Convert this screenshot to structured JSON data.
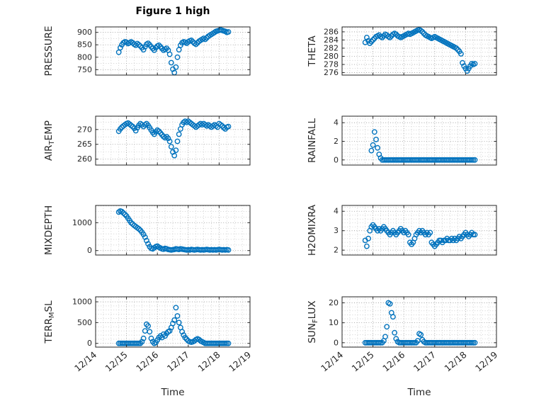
{
  "chart_data": {
    "type": "scatter",
    "title": "Figure 1 high",
    "xlabel": "Time",
    "marker_color": "#0072BD",
    "axes_color": "#262626",
    "grid_major_color": "#999999",
    "grid_minor_color": "#c2c2c2",
    "legend": "none",
    "grid": "on",
    "xlim": [
      0,
      5
    ],
    "x_ticks": [
      0,
      1,
      2,
      3,
      4,
      5
    ],
    "x_tick_labels": [
      "12/14",
      "12/15",
      "12/16",
      "12/17",
      "12/18",
      "12/19"
    ],
    "x_days_since_12_14": [
      0.75,
      0.8,
      0.85,
      0.9,
      0.95,
      1,
      1.05,
      1.1,
      1.15,
      1.2,
      1.25,
      1.3,
      1.35,
      1.4,
      1.45,
      1.5,
      1.55,
      1.6,
      1.65,
      1.7,
      1.75,
      1.8,
      1.85,
      1.9,
      1.95,
      2,
      2.05,
      2.1,
      2.15,
      2.2,
      2.25,
      2.3,
      2.35,
      2.4,
      2.45,
      2.5,
      2.55,
      2.6,
      2.65,
      2.7,
      2.75,
      2.8,
      2.85,
      2.9,
      2.95,
      3,
      3.05,
      3.1,
      3.15,
      3.2,
      3.25,
      3.3,
      3.35,
      3.4,
      3.45,
      3.5,
      3.55,
      3.6,
      3.65,
      3.7,
      3.75,
      3.8,
      3.85,
      3.9,
      3.95,
      4,
      4.05,
      4.1,
      4.15,
      4.2,
      4.25,
      4.3
    ],
    "panels": [
      {
        "ylabel": "PRESSURE",
        "row": 0,
        "col": 0,
        "ylim": [
          728,
          922
        ],
        "yticks": [
          750,
          800,
          850,
          900
        ],
        "values": [
          820,
          838,
          850,
          858,
          862,
          860,
          855,
          858,
          862,
          858,
          852,
          848,
          855,
          850,
          845,
          838,
          830,
          842,
          852,
          856,
          850,
          842,
          835,
          828,
          838,
          845,
          848,
          842,
          835,
          828,
          832,
          836,
          828,
          812,
          778,
          752,
          738,
          760,
          800,
          830,
          848,
          858,
          862,
          860,
          856,
          862,
          866,
          868,
          862,
          856,
          852,
          858,
          864,
          868,
          872,
          876,
          872,
          878,
          884,
          888,
          892,
          896,
          900,
          904,
          906,
          908,
          910,
          908,
          906,
          904,
          900,
          902
        ]
      },
      {
        "ylabel": "THETA",
        "row": 0,
        "col": 1,
        "ylim": [
          275.4,
          287.2
        ],
        "yticks": [
          276,
          278,
          280,
          282,
          284,
          286
        ],
        "values": [
          283.4,
          284.6,
          283.8,
          283.2,
          283.6,
          284,
          284.4,
          284.8,
          285,
          285.2,
          284.8,
          284.6,
          285,
          285.4,
          285.2,
          284.8,
          284.6,
          285,
          285.4,
          285.6,
          285.4,
          285,
          284.8,
          284.6,
          284.8,
          285,
          285.2,
          285.4,
          285.6,
          285.4,
          285.6,
          285.8,
          286,
          286.2,
          286.4,
          286.5,
          286.3,
          286,
          285.6,
          285.2,
          285,
          284.8,
          284.6,
          284.4,
          284.6,
          284.8,
          284.6,
          284.4,
          284.2,
          284,
          283.8,
          283.6,
          283.4,
          283.2,
          283,
          282.8,
          282.6,
          282.4,
          282.2,
          282,
          281.6,
          281.2,
          280.6,
          278.4,
          277.6,
          277,
          276.4,
          277,
          277.6,
          278.2,
          278,
          278.2
        ]
      },
      {
        "ylabel": "AIR_TEMP",
        "row": 1,
        "col": 0,
        "ylim": [
          258,
          274.5
        ],
        "yticks": [
          260,
          265,
          270
        ],
        "values": [
          269.4,
          270.2,
          270.8,
          271.2,
          271.6,
          272,
          272.2,
          271.8,
          271.4,
          271,
          270.4,
          269.6,
          270.6,
          271.4,
          272,
          271.6,
          271,
          271.6,
          272,
          271.4,
          270.6,
          269.8,
          269,
          268.4,
          269.2,
          269.8,
          269.4,
          268.8,
          268.2,
          267.6,
          267.2,
          267.6,
          267,
          266,
          264.2,
          262.4,
          261.2,
          263,
          266,
          268.4,
          270.2,
          271.6,
          272.4,
          272.8,
          272.4,
          272.8,
          272.4,
          272,
          271.6,
          271.2,
          270.8,
          271.2,
          271.6,
          272,
          271.6,
          272,
          271.6,
          271.2,
          271.6,
          271.2,
          270.8,
          271.2,
          271.6,
          271.2,
          270.8,
          272,
          271.6,
          271.2,
          270.6,
          270.2,
          270.8,
          271
        ]
      },
      {
        "ylabel": "RAINFALL",
        "row": 1,
        "col": 1,
        "ylim": [
          -0.55,
          4.7
        ],
        "yticks": [
          0,
          2,
          4
        ],
        "values": [
          null,
          null,
          null,
          null,
          1,
          1.6,
          3,
          2.2,
          1.3,
          0.6,
          0.2,
          0,
          0,
          0,
          0,
          0,
          0,
          0,
          0,
          0,
          0,
          0,
          0,
          0,
          0,
          0,
          0,
          0,
          0,
          0,
          0,
          0,
          0,
          0,
          0,
          0,
          0,
          0,
          0,
          0,
          0,
          0,
          0,
          0,
          0,
          0,
          0,
          0,
          0,
          0,
          0,
          0,
          0,
          0,
          0,
          0,
          0,
          0,
          0,
          0,
          0,
          0,
          0,
          0,
          0,
          0,
          0,
          0,
          0,
          0,
          0,
          0
        ]
      },
      {
        "ylabel": "MIXDEPTH",
        "row": 2,
        "col": 0,
        "ylim": [
          -160,
          1620
        ],
        "yticks": [
          0,
          1000
        ],
        "values": [
          1380,
          1420,
          1400,
          1350,
          1300,
          1240,
          1160,
          1080,
          1000,
          950,
          900,
          860,
          820,
          780,
          730,
          660,
          580,
          480,
          360,
          240,
          140,
          80,
          60,
          100,
          140,
          160,
          120,
          90,
          60,
          50,
          80,
          60,
          40,
          30,
          20,
          30,
          40,
          60,
          50,
          40,
          60,
          50,
          40,
          30,
          20,
          30,
          20,
          40,
          30,
          20,
          30,
          40,
          30,
          20,
          30,
          20,
          30,
          40,
          30,
          20,
          30,
          20,
          30,
          20,
          30,
          40,
          30,
          20,
          30,
          20,
          30,
          20
        ]
      },
      {
        "ylabel": "H2OMIXRA",
        "row": 2,
        "col": 1,
        "ylim": [
          1.75,
          4.3
        ],
        "yticks": [
          2,
          3,
          4
        ],
        "values": [
          2.5,
          2.2,
          2.6,
          3,
          3.2,
          3.3,
          3.2,
          3.1,
          3,
          3.1,
          3,
          3.1,
          3.2,
          3.1,
          3,
          2.9,
          2.8,
          2.9,
          3,
          2.9,
          2.8,
          2.9,
          3,
          3.1,
          3,
          2.9,
          3,
          2.9,
          2.8,
          2.4,
          2.3,
          2.4,
          2.6,
          2.8,
          2.9,
          3,
          2.9,
          3,
          2.9,
          2.8,
          2.9,
          2.8,
          2.9,
          2.4,
          2.3,
          2.2,
          2.3,
          2.4,
          2.5,
          2.5,
          2.4,
          2.5,
          2.5,
          2.6,
          2.5,
          2.5,
          2.6,
          2.5,
          2.6,
          2.5,
          2.6,
          2.7,
          2.6,
          2.7,
          2.8,
          2.9,
          2.8,
          2.7,
          2.8,
          2.9,
          2.8,
          2.8
        ]
      },
      {
        "ylabel": "TERR_MSL",
        "row": 3,
        "col": 0,
        "ylim": [
          -90,
          1120
        ],
        "yticks": [
          0,
          500,
          1000
        ],
        "values": [
          0,
          0,
          0,
          0,
          0,
          0,
          0,
          0,
          0,
          0,
          0,
          0,
          0,
          0,
          0,
          40,
          120,
          300,
          460,
          420,
          280,
          120,
          40,
          0,
          20,
          80,
          140,
          180,
          140,
          220,
          180,
          240,
          280,
          300,
          380,
          480,
          560,
          860,
          660,
          500,
          380,
          280,
          200,
          140,
          100,
          60,
          40,
          30,
          40,
          60,
          90,
          110,
          90,
          60,
          40,
          20,
          0,
          0,
          0,
          0,
          0,
          0,
          0,
          0,
          0,
          0,
          0,
          0,
          0,
          0,
          0,
          0
        ]
      },
      {
        "ylabel": "SUN_FLUX",
        "row": 3,
        "col": 1,
        "ylim": [
          -2.2,
          23
        ],
        "yticks": [
          0,
          10,
          20
        ],
        "values": [
          0,
          0,
          0,
          0,
          0,
          0,
          0,
          0,
          0,
          0,
          0,
          0,
          1,
          3,
          8,
          20,
          19.5,
          15,
          13,
          5,
          2,
          0.5,
          0,
          0,
          0,
          0,
          0,
          0,
          0,
          0,
          0,
          0,
          0,
          0,
          1,
          4.5,
          4,
          1.5,
          0.5,
          0,
          0,
          0,
          0,
          0,
          0,
          0,
          0,
          0,
          0,
          0,
          0,
          0,
          0,
          0,
          0,
          0,
          0,
          0,
          0,
          0,
          0,
          0,
          0,
          0,
          0,
          0,
          0,
          0,
          0,
          0,
          0,
          0
        ]
      }
    ]
  }
}
